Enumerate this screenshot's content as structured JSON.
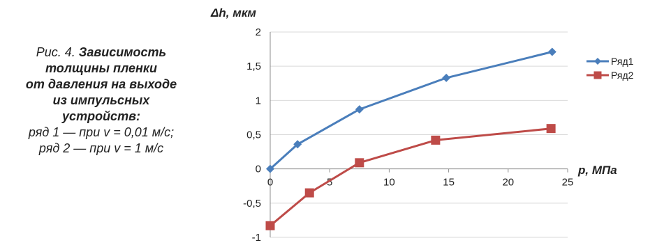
{
  "caption": {
    "line1_prefix": "Рис. 4. ",
    "line1_bold": "Зависимость",
    "line2": "толщины пленки",
    "line3": "от давления на выходе",
    "line4": "из импульсных",
    "line5": "устройств:",
    "line6": "ряд 1 — при v = 0,01 м/с;",
    "line7": "ряд 2 — при v = 1 м/с"
  },
  "chart_data": {
    "type": "line",
    "ylabel": "Δh, мкм",
    "xlabel": "p, МПа",
    "xlim": [
      0,
      25
    ],
    "ylim": [
      -1,
      2
    ],
    "x_ticks": [
      "0",
      "5",
      "10",
      "15",
      "20",
      "25"
    ],
    "y_ticks": [
      "-1",
      "-0,5",
      "0",
      "0,5",
      "1",
      "1,5",
      "2"
    ],
    "grid": "horizontal",
    "legend": "right",
    "series": [
      {
        "name": "Ряд1",
        "color": "#4a7ebb",
        "marker": "diamond",
        "points": [
          [
            0,
            0
          ],
          [
            2.3,
            0.36
          ],
          [
            7.5,
            0.87
          ],
          [
            14.8,
            1.33
          ],
          [
            23.7,
            1.71
          ]
        ]
      },
      {
        "name": "Ряд2",
        "color": "#be4b48",
        "marker": "square",
        "points": [
          [
            0,
            -0.83
          ],
          [
            3.3,
            -0.35
          ],
          [
            7.5,
            0.09
          ],
          [
            13.9,
            0.42
          ],
          [
            23.6,
            0.59
          ]
        ]
      }
    ]
  }
}
